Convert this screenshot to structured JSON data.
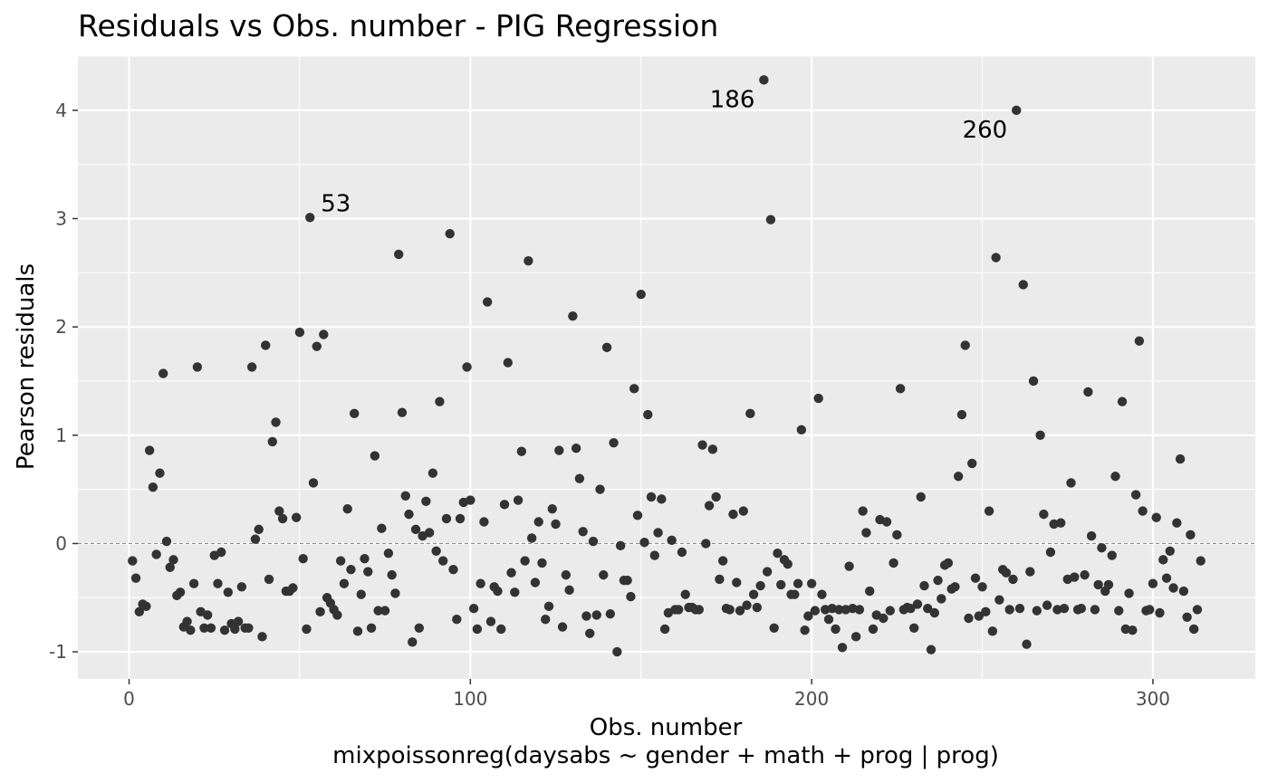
{
  "chart_data": {
    "type": "scatter",
    "title": "Residuals vs Obs. number - PIG Regression",
    "xlabel": "Obs. number",
    "xlabel_sub": "mixpoissonreg(daysabs ~ gender + math + prog | prog)",
    "ylabel": "Pearson residuals",
    "xlim": [
      -15,
      330
    ],
    "ylim": [
      -1.25,
      4.5
    ],
    "x_ticks": [
      0,
      100,
      200,
      300
    ],
    "y_ticks": [
      -1,
      0,
      1,
      2,
      3,
      4
    ],
    "y_tick_labels": [
      "-1",
      "0",
      "1",
      "2",
      "3",
      "4"
    ],
    "reference_line": {
      "y": 0,
      "style": "dashed",
      "color": "#7f7f7f"
    },
    "grid": true,
    "colors": {
      "panel": "#ebebeb",
      "grid": "#ffffff",
      "point": "#333333"
    },
    "labeled_points": [
      {
        "x": 53,
        "y": 3.01,
        "label": "53"
      },
      {
        "x": 186,
        "y": 4.28,
        "label": "186"
      },
      {
        "x": 260,
        "y": 4.0,
        "label": "260"
      }
    ],
    "points": [
      [
        1,
        -0.16
      ],
      [
        2,
        -0.32
      ],
      [
        3,
        -0.63
      ],
      [
        4,
        -0.56
      ],
      [
        5,
        -0.58
      ],
      [
        6,
        0.86
      ],
      [
        7,
        0.52
      ],
      [
        8,
        -0.1
      ],
      [
        9,
        0.65
      ],
      [
        10,
        1.57
      ],
      [
        11,
        0.02
      ],
      [
        12,
        -0.22
      ],
      [
        13,
        -0.15
      ],
      [
        14,
        -0.48
      ],
      [
        15,
        -0.45
      ],
      [
        16,
        -0.77
      ],
      [
        17,
        -0.72
      ],
      [
        18,
        -0.8
      ],
      [
        19,
        -0.37
      ],
      [
        20,
        1.63
      ],
      [
        21,
        -0.63
      ],
      [
        22,
        -0.78
      ],
      [
        23,
        -0.66
      ],
      [
        24,
        -0.78
      ],
      [
        25,
        -0.11
      ],
      [
        26,
        -0.37
      ],
      [
        27,
        -0.08
      ],
      [
        28,
        -0.8
      ],
      [
        29,
        -0.45
      ],
      [
        30,
        -0.74
      ],
      [
        31,
        -0.79
      ],
      [
        32,
        -0.72
      ],
      [
        33,
        -0.4
      ],
      [
        34,
        -0.78
      ],
      [
        35,
        -0.78
      ],
      [
        36,
        1.63
      ],
      [
        37,
        0.04
      ],
      [
        38,
        0.13
      ],
      [
        39,
        -0.86
      ],
      [
        40,
        1.83
      ],
      [
        41,
        -0.33
      ],
      [
        42,
        0.94
      ],
      [
        43,
        1.12
      ],
      [
        44,
        0.3
      ],
      [
        45,
        0.23
      ],
      [
        46,
        -0.44
      ],
      [
        47,
        -0.44
      ],
      [
        48,
        -0.41
      ],
      [
        49,
        0.24
      ],
      [
        50,
        1.95
      ],
      [
        51,
        -0.14
      ],
      [
        52,
        -0.79
      ],
      [
        53,
        3.01
      ],
      [
        54,
        0.56
      ],
      [
        55,
        1.82
      ],
      [
        56,
        -0.63
      ],
      [
        57,
        1.93
      ],
      [
        58,
        -0.5
      ],
      [
        59,
        -0.55
      ],
      [
        60,
        -0.61
      ],
      [
        61,
        -0.66
      ],
      [
        62,
        -0.16
      ],
      [
        63,
        -0.37
      ],
      [
        64,
        0.32
      ],
      [
        65,
        -0.24
      ],
      [
        66,
        1.2
      ],
      [
        67,
        -0.81
      ],
      [
        68,
        -0.47
      ],
      [
        69,
        -0.14
      ],
      [
        70,
        -0.26
      ],
      [
        71,
        -0.78
      ],
      [
        72,
        0.81
      ],
      [
        73,
        -0.62
      ],
      [
        74,
        0.14
      ],
      [
        75,
        -0.62
      ],
      [
        76,
        -0.09
      ],
      [
        77,
        -0.29
      ],
      [
        78,
        -0.46
      ],
      [
        79,
        2.67
      ],
      [
        80,
        1.21
      ],
      [
        81,
        0.44
      ],
      [
        82,
        0.27
      ],
      [
        83,
        -0.91
      ],
      [
        84,
        0.13
      ],
      [
        85,
        -0.78
      ],
      [
        86,
        0.07
      ],
      [
        87,
        0.39
      ],
      [
        88,
        0.1
      ],
      [
        89,
        0.65
      ],
      [
        90,
        -0.07
      ],
      [
        91,
        1.31
      ],
      [
        92,
        -0.16
      ],
      [
        93,
        0.23
      ],
      [
        94,
        2.86
      ],
      [
        95,
        -0.24
      ],
      [
        96,
        -0.7
      ],
      [
        97,
        0.23
      ],
      [
        98,
        0.38
      ],
      [
        99,
        1.63
      ],
      [
        100,
        0.4
      ],
      [
        101,
        -0.6
      ],
      [
        102,
        -0.79
      ],
      [
        103,
        -0.37
      ],
      [
        104,
        0.2
      ],
      [
        105,
        2.23
      ],
      [
        106,
        -0.72
      ],
      [
        107,
        -0.4
      ],
      [
        108,
        -0.44
      ],
      [
        109,
        -0.79
      ],
      [
        110,
        0.36
      ],
      [
        111,
        1.67
      ],
      [
        112,
        -0.27
      ],
      [
        113,
        -0.45
      ],
      [
        114,
        0.4
      ],
      [
        115,
        0.85
      ],
      [
        116,
        -0.16
      ],
      [
        117,
        2.61
      ],
      [
        118,
        0.05
      ],
      [
        119,
        -0.36
      ],
      [
        120,
        0.2
      ],
      [
        121,
        -0.18
      ],
      [
        122,
        -0.7
      ],
      [
        123,
        -0.58
      ],
      [
        124,
        0.32
      ],
      [
        125,
        0.18
      ],
      [
        126,
        0.86
      ],
      [
        127,
        -0.77
      ],
      [
        128,
        -0.29
      ],
      [
        129,
        -0.43
      ],
      [
        130,
        2.1
      ],
      [
        131,
        0.88
      ],
      [
        132,
        0.6
      ],
      [
        133,
        0.11
      ],
      [
        134,
        -0.67
      ],
      [
        135,
        -0.83
      ],
      [
        136,
        0.02
      ],
      [
        137,
        -0.66
      ],
      [
        138,
        0.5
      ],
      [
        139,
        -0.29
      ],
      [
        140,
        1.81
      ],
      [
        141,
        -0.65
      ],
      [
        142,
        0.93
      ],
      [
        143,
        -1.0
      ],
      [
        144,
        -0.02
      ],
      [
        145,
        -0.34
      ],
      [
        146,
        -0.34
      ],
      [
        147,
        -0.49
      ],
      [
        148,
        1.43
      ],
      [
        149,
        0.26
      ],
      [
        150,
        2.3
      ],
      [
        151,
        0.01
      ],
      [
        152,
        1.19
      ],
      [
        153,
        0.43
      ],
      [
        154,
        -0.11
      ],
      [
        155,
        0.1
      ],
      [
        156,
        0.41
      ],
      [
        157,
        -0.79
      ],
      [
        158,
        -0.64
      ],
      [
        159,
        0.03
      ],
      [
        160,
        -0.61
      ],
      [
        161,
        -0.61
      ],
      [
        162,
        -0.08
      ],
      [
        163,
        -0.47
      ],
      [
        164,
        -0.59
      ],
      [
        165,
        -0.59
      ],
      [
        166,
        -0.61
      ],
      [
        167,
        -0.61
      ],
      [
        168,
        0.91
      ],
      [
        169,
        0.0
      ],
      [
        170,
        0.35
      ],
      [
        171,
        0.87
      ],
      [
        172,
        0.43
      ],
      [
        173,
        -0.33
      ],
      [
        174,
        -0.16
      ],
      [
        175,
        -0.6
      ],
      [
        176,
        -0.61
      ],
      [
        177,
        0.27
      ],
      [
        178,
        -0.36
      ],
      [
        179,
        -0.62
      ],
      [
        180,
        0.3
      ],
      [
        181,
        -0.57
      ],
      [
        182,
        1.2
      ],
      [
        183,
        -0.47
      ],
      [
        184,
        -0.59
      ],
      [
        185,
        -0.39
      ],
      [
        186,
        4.28
      ],
      [
        187,
        -0.26
      ],
      [
        188,
        2.99
      ],
      [
        189,
        -0.78
      ],
      [
        190,
        -0.09
      ],
      [
        191,
        -0.38
      ],
      [
        192,
        -0.15
      ],
      [
        193,
        -0.19
      ],
      [
        194,
        -0.47
      ],
      [
        195,
        -0.47
      ],
      [
        196,
        -0.37
      ],
      [
        197,
        1.05
      ],
      [
        198,
        -0.8
      ],
      [
        199,
        -0.67
      ],
      [
        200,
        -0.37
      ],
      [
        201,
        -0.62
      ],
      [
        202,
        1.34
      ],
      [
        203,
        -0.47
      ],
      [
        204,
        -0.61
      ],
      [
        205,
        -0.7
      ],
      [
        206,
        -0.6
      ],
      [
        207,
        -0.79
      ],
      [
        208,
        -0.61
      ],
      [
        209,
        -0.96
      ],
      [
        210,
        -0.61
      ],
      [
        211,
        -0.21
      ],
      [
        212,
        -0.6
      ],
      [
        213,
        -0.86
      ],
      [
        214,
        -0.61
      ],
      [
        215,
        0.3
      ],
      [
        216,
        0.1
      ],
      [
        217,
        -0.44
      ],
      [
        218,
        -0.79
      ],
      [
        219,
        -0.66
      ],
      [
        220,
        0.22
      ],
      [
        221,
        -0.69
      ],
      [
        222,
        0.2
      ],
      [
        223,
        -0.62
      ],
      [
        224,
        -0.18
      ],
      [
        225,
        0.08
      ],
      [
        226,
        1.43
      ],
      [
        227,
        -0.61
      ],
      [
        228,
        -0.59
      ],
      [
        229,
        -0.6
      ],
      [
        230,
        -0.78
      ],
      [
        231,
        -0.56
      ],
      [
        232,
        0.43
      ],
      [
        233,
        -0.39
      ],
      [
        234,
        -0.6
      ],
      [
        235,
        -0.98
      ],
      [
        236,
        -0.64
      ],
      [
        237,
        -0.34
      ],
      [
        238,
        -0.51
      ],
      [
        239,
        -0.2
      ],
      [
        240,
        -0.18
      ],
      [
        241,
        -0.42
      ],
      [
        242,
        -0.4
      ],
      [
        243,
        0.62
      ],
      [
        244,
        1.19
      ],
      [
        245,
        1.83
      ],
      [
        246,
        -0.69
      ],
      [
        247,
        0.74
      ],
      [
        248,
        -0.32
      ],
      [
        249,
        -0.67
      ],
      [
        250,
        -0.4
      ],
      [
        251,
        -0.63
      ],
      [
        252,
        0.3
      ],
      [
        253,
        -0.81
      ],
      [
        254,
        2.64
      ],
      [
        255,
        -0.52
      ],
      [
        256,
        -0.24
      ],
      [
        257,
        -0.27
      ],
      [
        258,
        -0.61
      ],
      [
        259,
        -0.33
      ],
      [
        260,
        4.0
      ],
      [
        261,
        -0.6
      ],
      [
        262,
        2.39
      ],
      [
        263,
        -0.93
      ],
      [
        264,
        -0.26
      ],
      [
        265,
        1.5
      ],
      [
        266,
        -0.62
      ],
      [
        267,
        1.0
      ],
      [
        268,
        0.27
      ],
      [
        269,
        -0.57
      ],
      [
        270,
        -0.08
      ],
      [
        271,
        0.18
      ],
      [
        272,
        -0.61
      ],
      [
        273,
        0.19
      ],
      [
        274,
        -0.6
      ],
      [
        275,
        -0.33
      ],
      [
        276,
        0.56
      ],
      [
        277,
        -0.31
      ],
      [
        278,
        -0.61
      ],
      [
        279,
        -0.6
      ],
      [
        280,
        -0.29
      ],
      [
        281,
        1.4
      ],
      [
        282,
        0.07
      ],
      [
        283,
        -0.61
      ],
      [
        284,
        -0.38
      ],
      [
        285,
        -0.04
      ],
      [
        286,
        -0.44
      ],
      [
        287,
        -0.38
      ],
      [
        288,
        -0.11
      ],
      [
        289,
        0.62
      ],
      [
        290,
        -0.62
      ],
      [
        291,
        1.31
      ],
      [
        292,
        -0.79
      ],
      [
        293,
        -0.46
      ],
      [
        294,
        -0.8
      ],
      [
        295,
        0.45
      ],
      [
        296,
        1.87
      ],
      [
        297,
        0.3
      ],
      [
        298,
        -0.62
      ],
      [
        299,
        -0.61
      ],
      [
        300,
        -0.37
      ],
      [
        301,
        0.24
      ],
      [
        302,
        -0.64
      ],
      [
        303,
        -0.15
      ],
      [
        304,
        -0.32
      ],
      [
        305,
        -0.07
      ],
      [
        306,
        -0.41
      ],
      [
        307,
        0.19
      ],
      [
        308,
        0.78
      ],
      [
        309,
        -0.44
      ],
      [
        310,
        -0.68
      ],
      [
        311,
        0.08
      ],
      [
        312,
        -0.79
      ],
      [
        313,
        -0.61
      ],
      [
        314,
        -0.16
      ]
    ]
  }
}
